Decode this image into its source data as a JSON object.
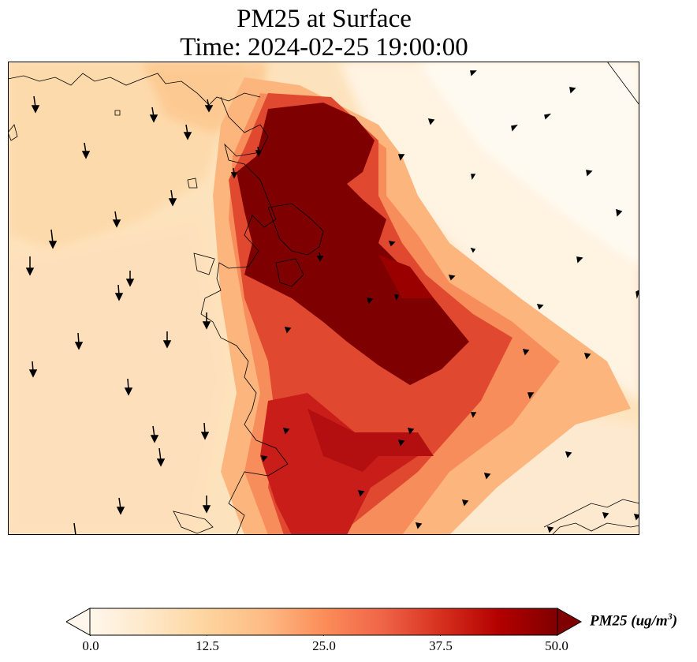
{
  "chart_data": {
    "type": "heatmap",
    "title_line1": "PM25 at Surface",
    "title_line2": "Time: 2024-02-25 19:00:00",
    "variable": "PM25",
    "colorbar": {
      "label": "PM25 (ug/m",
      "label_sup": "3",
      "label_close": ")",
      "vmin": 0.0,
      "vmax": 50.0,
      "ticks": [
        "0.0",
        "12.5",
        "25.0",
        "37.5",
        "50.0"
      ],
      "extend": "both",
      "colormap": [
        "#fff7ec",
        "#fee8c8",
        "#fdd49e",
        "#fdbb84",
        "#fc8d59",
        "#ef6548",
        "#d7301f",
        "#b30000",
        "#7f0000"
      ]
    },
    "hotspot_color": "#7f0000",
    "wind_vectors": "arrows mostly pointing south (west) and northwest (east)"
  }
}
